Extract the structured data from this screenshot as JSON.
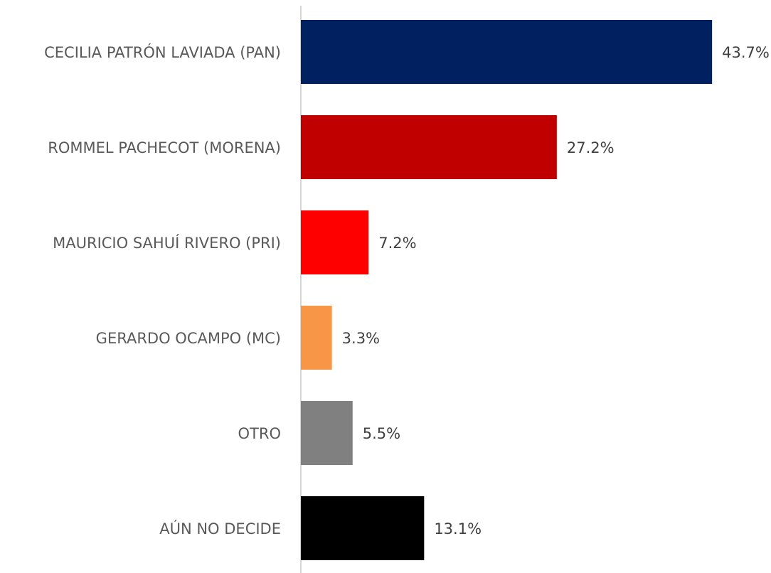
{
  "chart_data": {
    "type": "hbar",
    "categories": [
      "CECILIA PATRÓN LAVIADA (PAN)",
      "ROMMEL PACHECOT (MORENA)",
      "MAURICIO SAHUÍ RIVERO (PRI)",
      "GERARDO OCAMPO (MC)",
      "OTRO",
      "AÚN NO DECIDE"
    ],
    "values": [
      43.7,
      27.2,
      7.2,
      3.3,
      5.5,
      13.1
    ],
    "value_labels": [
      "43.7%",
      "27.2%",
      "7.2%",
      "3.3%",
      "5.5%",
      "13.1%"
    ],
    "colors": [
      "#002060",
      "#c00000",
      "#ff0000",
      "#f79646",
      "#808080",
      "#000000"
    ]
  }
}
